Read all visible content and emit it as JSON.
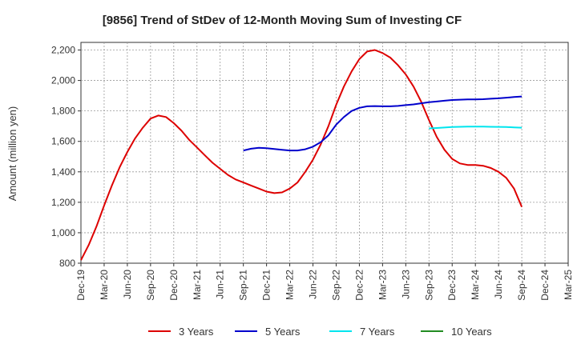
{
  "chart_data": {
    "type": "line",
    "title": "[9856]  Trend of StDev of 12-Month Moving Sum of Investing CF",
    "xlabel": "",
    "ylabel": "Amount (million yen)",
    "ylim": [
      800,
      2250
    ],
    "yticks": [
      800,
      1000,
      1200,
      1400,
      1600,
      1800,
      2000,
      2200
    ],
    "ytick_labels": [
      "800",
      "1,000",
      "1,200",
      "1,400",
      "1,600",
      "1,800",
      "2,000",
      "2,200"
    ],
    "x_tick_labels": [
      "Dec-19",
      "Mar-20",
      "Jun-20",
      "Sep-20",
      "Dec-20",
      "Mar-21",
      "Jun-21",
      "Sep-21",
      "Dec-21",
      "Mar-22",
      "Jun-22",
      "Sep-22",
      "Dec-22",
      "Mar-23",
      "Jun-23",
      "Sep-23",
      "Dec-23",
      "Mar-24",
      "Jun-24",
      "Sep-24",
      "Dec-24",
      "Mar-25"
    ],
    "grid": true,
    "legend_position": "bottom",
    "series": [
      {
        "name": "3 Years",
        "color": "#dd0000",
        "x": [
          "Dec-19",
          "Jan-20",
          "Feb-20",
          "Mar-20",
          "Apr-20",
          "May-20",
          "Jun-20",
          "Jul-20",
          "Aug-20",
          "Sep-20",
          "Oct-20",
          "Nov-20",
          "Dec-20",
          "Jan-21",
          "Feb-21",
          "Mar-21",
          "Apr-21",
          "May-21",
          "Jun-21",
          "Jul-21",
          "Aug-21",
          "Sep-21",
          "Oct-21",
          "Nov-21",
          "Dec-21",
          "Jan-22",
          "Feb-22",
          "Mar-22",
          "Apr-22",
          "May-22",
          "Jun-22",
          "Jul-22",
          "Aug-22",
          "Sep-22",
          "Oct-22",
          "Nov-22",
          "Dec-22",
          "Jan-23",
          "Feb-23",
          "Mar-23",
          "Apr-23",
          "May-23",
          "Jun-23",
          "Jul-23",
          "Aug-23",
          "Sep-23",
          "Oct-23",
          "Nov-23",
          "Dec-23",
          "Jan-24",
          "Feb-24",
          "Mar-24",
          "Apr-24",
          "May-24",
          "Jun-24",
          "Jul-24",
          "Aug-24",
          "Sep-24"
        ],
        "values": [
          820,
          920,
          1040,
          1180,
          1310,
          1430,
          1530,
          1620,
          1690,
          1750,
          1770,
          1760,
          1720,
          1670,
          1610,
          1560,
          1510,
          1460,
          1420,
          1380,
          1350,
          1330,
          1310,
          1290,
          1270,
          1260,
          1265,
          1290,
          1330,
          1400,
          1480,
          1580,
          1700,
          1840,
          1960,
          2060,
          2140,
          2190,
          2200,
          2180,
          2150,
          2100,
          2040,
          1960,
          1860,
          1740,
          1630,
          1545,
          1485,
          1455,
          1445,
          1445,
          1440,
          1425,
          1400,
          1360,
          1290,
          1170
        ]
      },
      {
        "name": "5 Years",
        "color": "#0000cc",
        "x": [
          "Sep-21",
          "Oct-21",
          "Nov-21",
          "Dec-21",
          "Jan-22",
          "Feb-22",
          "Mar-22",
          "Apr-22",
          "May-22",
          "Jun-22",
          "Jul-22",
          "Aug-22",
          "Sep-22",
          "Oct-22",
          "Nov-22",
          "Dec-22",
          "Jan-23",
          "Feb-23",
          "Mar-23",
          "Apr-23",
          "May-23",
          "Jun-23",
          "Jul-23",
          "Aug-23",
          "Sep-23",
          "Oct-23",
          "Nov-23",
          "Dec-23",
          "Jan-24",
          "Feb-24",
          "Mar-24",
          "Apr-24",
          "May-24",
          "Jun-24",
          "Jul-24",
          "Aug-24",
          "Sep-24"
        ],
        "values": [
          1540,
          1552,
          1558,
          1555,
          1550,
          1545,
          1540,
          1540,
          1548,
          1565,
          1595,
          1640,
          1710,
          1760,
          1800,
          1820,
          1830,
          1832,
          1830,
          1830,
          1833,
          1838,
          1843,
          1850,
          1857,
          1862,
          1867,
          1872,
          1874,
          1876,
          1876,
          1877,
          1880,
          1883,
          1887,
          1891,
          1895
        ]
      },
      {
        "name": "7 Years",
        "color": "#00e5ee",
        "x": [
          "Sep-23",
          "Oct-23",
          "Nov-23",
          "Dec-23",
          "Jan-24",
          "Feb-24",
          "Mar-24",
          "Apr-24",
          "May-24",
          "Jun-24",
          "Jul-24",
          "Aug-24",
          "Sep-24"
        ],
        "values": [
          1685,
          1688,
          1691,
          1694,
          1696,
          1697,
          1697,
          1697,
          1696,
          1695,
          1694,
          1692,
          1690
        ]
      },
      {
        "name": "10 Years",
        "color": "#228b22",
        "x": [],
        "values": []
      }
    ]
  }
}
